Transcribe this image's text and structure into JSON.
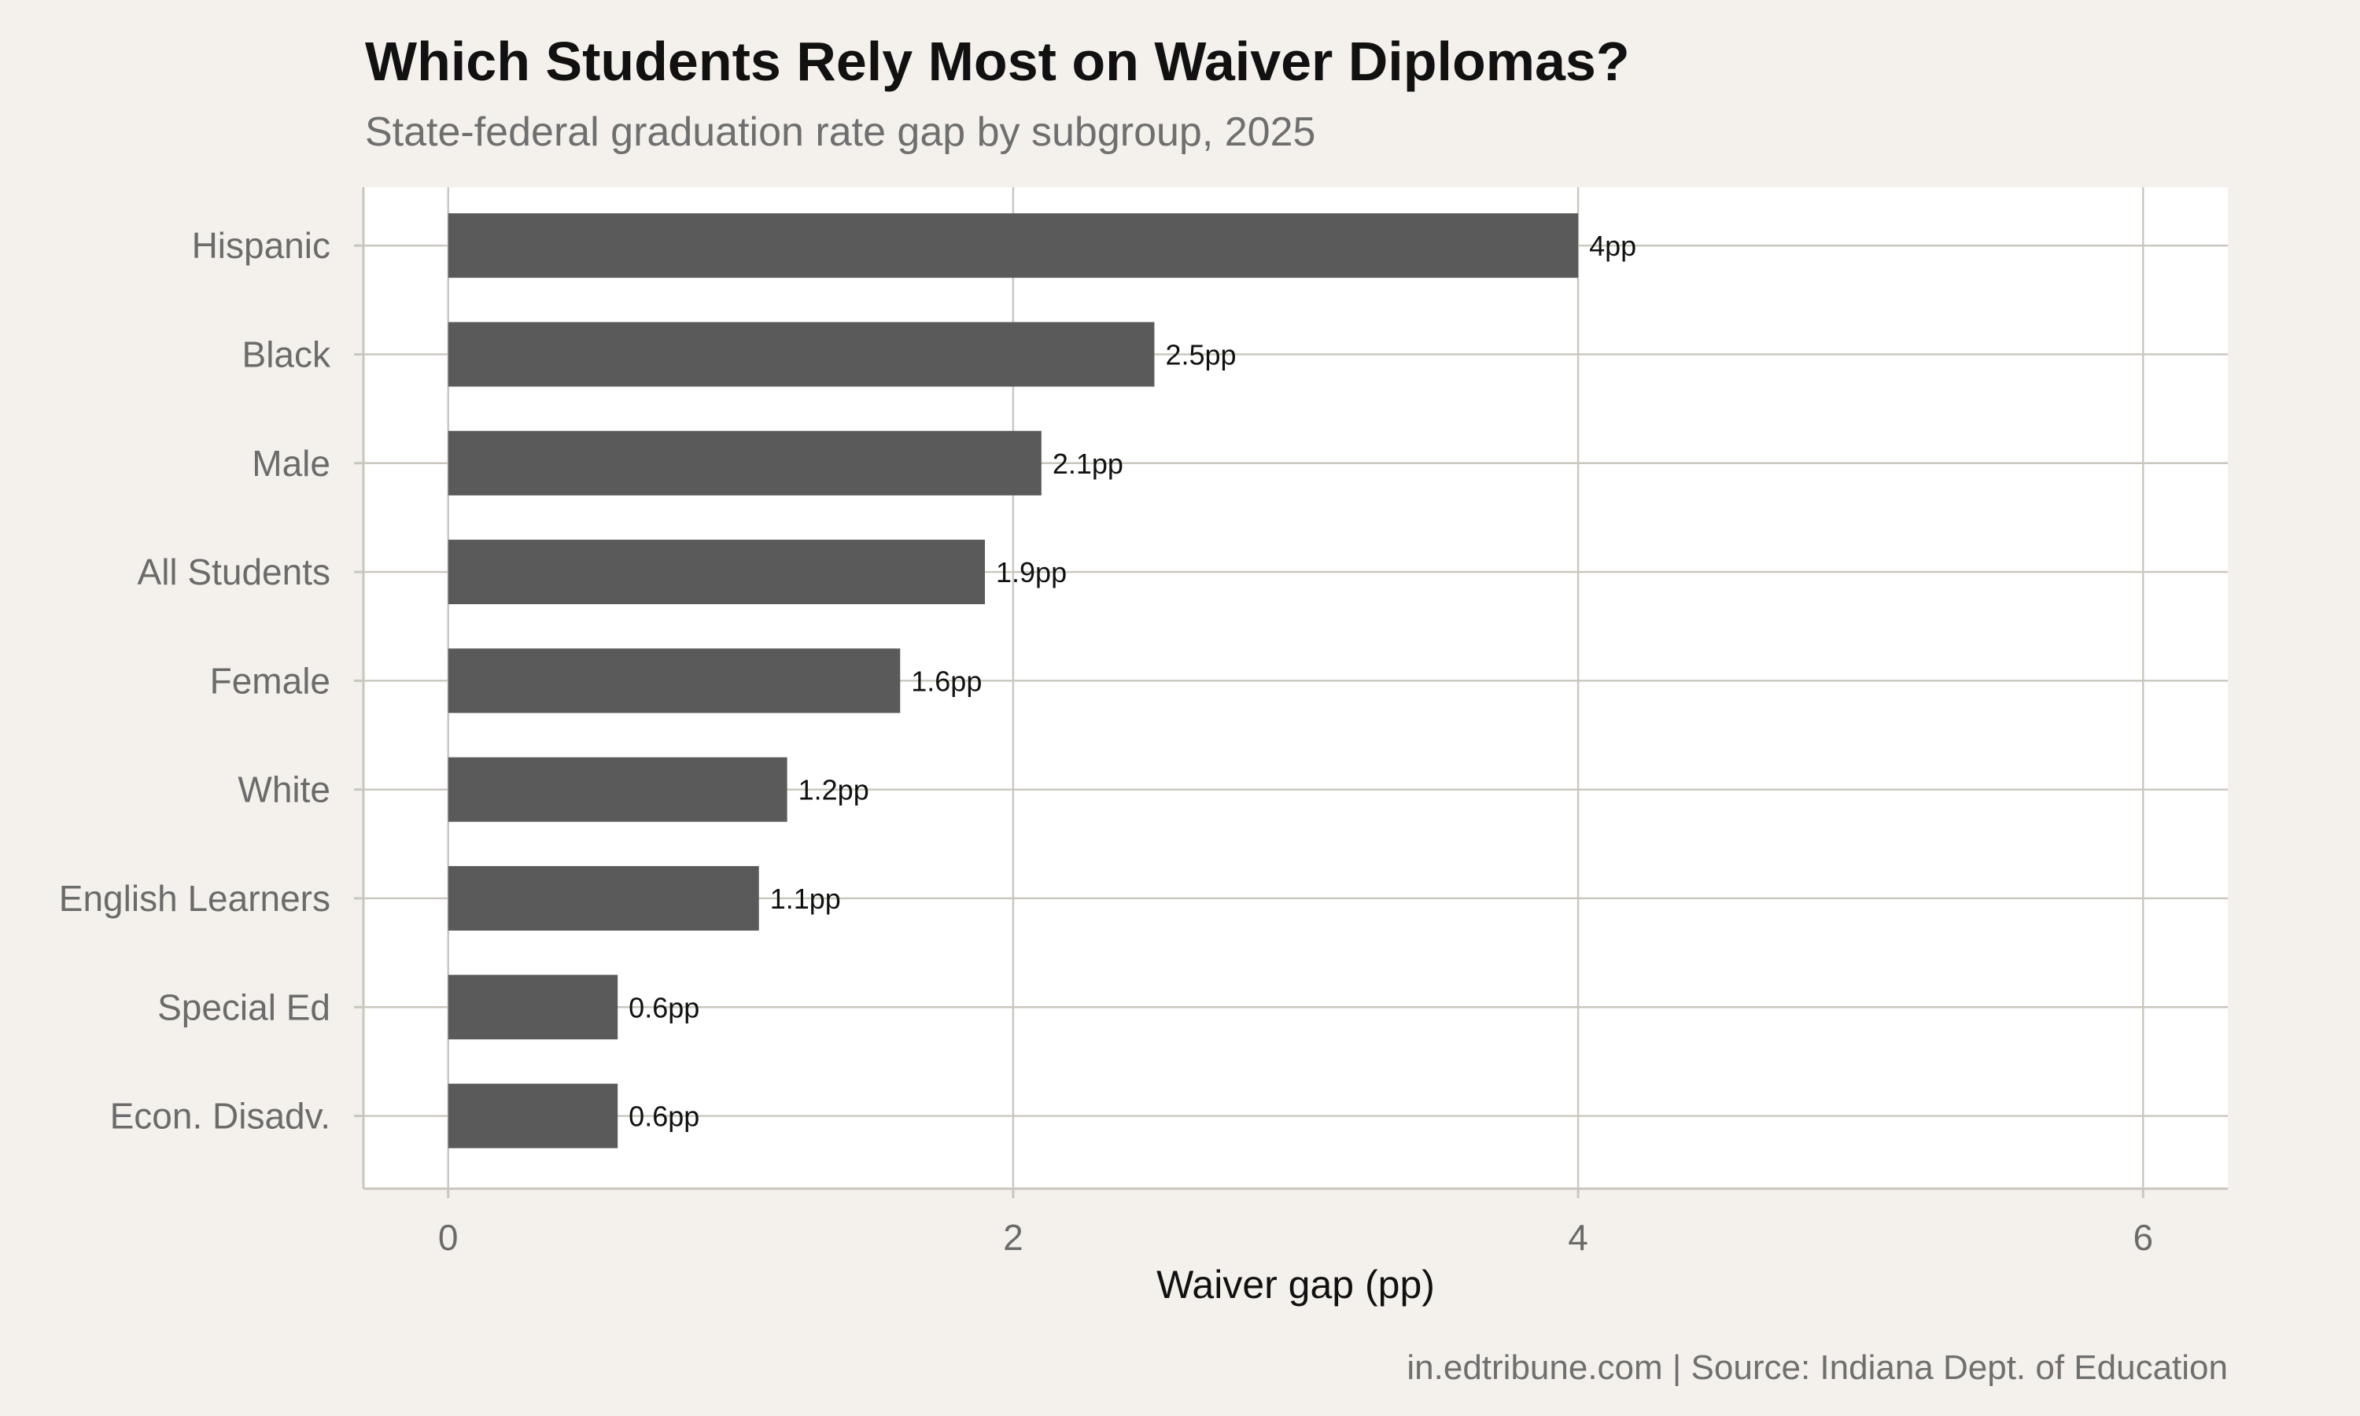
{
  "header": {
    "title": "Which Students Rely Most on Waiver Diplomas?",
    "subtitle": "State-federal graduation rate gap by subgroup, 2025"
  },
  "footer": {
    "caption": "in.edtribune.com | Source: Indiana Dept. of Education"
  },
  "colors": {
    "background": "#f4f1ec",
    "panel": "#ffffff",
    "bar": "#5a5a5a",
    "grid": "#c9c6bd"
  },
  "chart_data": {
    "type": "bar",
    "orientation": "horizontal",
    "categories": [
      "Hispanic",
      "Black",
      "Male",
      "All Students",
      "Female",
      "White",
      "English Learners",
      "Special Ed",
      "Econ. Disadv."
    ],
    "values": [
      4,
      2.5,
      2.1,
      1.9,
      1.6,
      1.2,
      1.1,
      0.6,
      0.6
    ],
    "data_labels": [
      "4pp",
      "2.5pp",
      "2.1pp",
      "1.9pp",
      "1.6pp",
      "1.2pp",
      "1.1pp",
      "0.6pp",
      "0.6pp"
    ],
    "xlabel": "Waiver gap (pp)",
    "ylabel": "",
    "xlim": [
      -0.3,
      6.3
    ],
    "xticks": [
      0,
      2,
      4,
      6
    ],
    "xtick_labels": [
      "0",
      "2",
      "4",
      "6"
    ],
    "grid": true,
    "legend": "none"
  }
}
